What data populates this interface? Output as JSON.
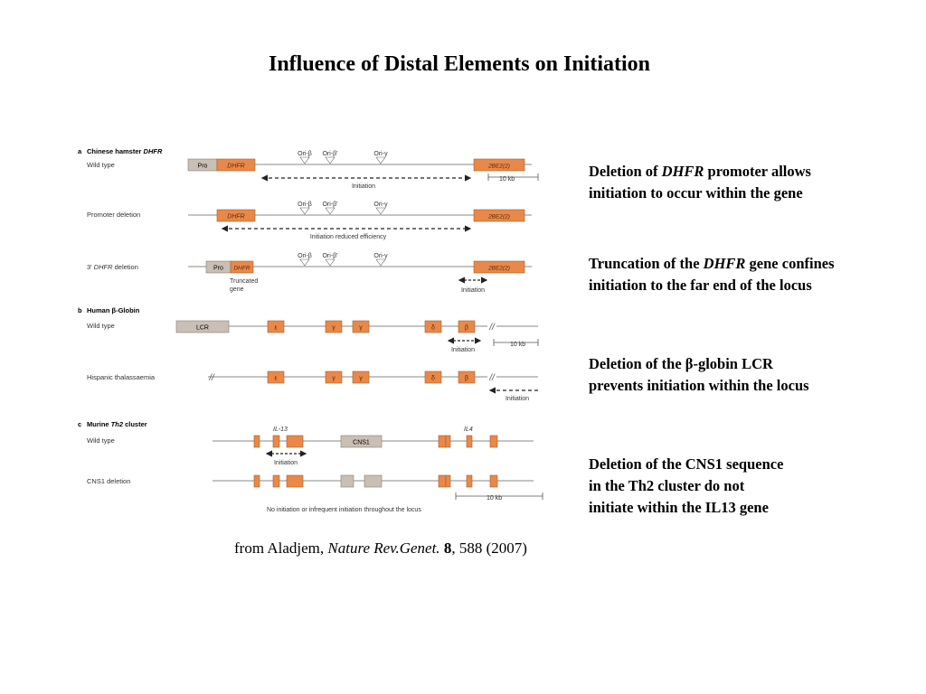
{
  "slide": {
    "title": "Influence of Distal Elements on Initiation"
  },
  "figure": {
    "panel_a": {
      "letter": "a",
      "heading_prefix": "Chinese hamster ",
      "heading_gene": "DHFR",
      "row_wild_type": "Wild type",
      "row_promoter_deletion": "Promoter deletion",
      "row_3prime_prefix": "3′ ",
      "row_3prime_gene": "DHFR",
      "row_3prime_suffix": " deletion",
      "pro": "Pro",
      "dhfr": "DHFR",
      "gene_2bez": "2BE2(2)",
      "ori_beta": "Ori-β",
      "ori_beta_prime": "Ori-β′",
      "ori_gamma": "Ori-γ",
      "initiation": "Initiation",
      "initiation_reduced": "Initiation reduced efficiency",
      "truncated_line1": "Truncated",
      "truncated_line2": "gene",
      "scale_10kb": "10 kb"
    },
    "panel_b": {
      "letter": "b",
      "heading": "Human β-Globin",
      "row_wild_type": "Wild type",
      "row_hispanic": "Hispanic thalassaemia",
      "lcr": "LCR",
      "epsilon": "ε",
      "gamma": "γ",
      "delta": "δ",
      "beta": "β",
      "break_mark": "//",
      "initiation": "Initiation",
      "scale_10kb": "10 kb"
    },
    "panel_c": {
      "letter": "c",
      "heading_prefix": "Murine ",
      "heading_gene": "Th2",
      "heading_suffix": " cluster",
      "row_wild_type": "Wild type",
      "row_cns1_deletion": "CNS1 deletion",
      "il13": "IL-13",
      "il4": "IL4",
      "cns1": "CNS1",
      "initiation": "Initiation",
      "scale_10kb": "10 kb",
      "no_initiation": "No initiation or infrequent initiation throughout the locus"
    }
  },
  "notes": [
    {
      "line1_prefix": "Deletion of ",
      "line1_italic": "DHFR",
      "line1_suffix": " promoter allows",
      "line2": "initiation to occur within the gene"
    },
    {
      "line1_prefix": "Truncation of the ",
      "line1_italic": "DHFR",
      "line1_suffix": " gene confines",
      "line2": "initiation to the far end of the locus"
    },
    {
      "line1": "Deletion of the β-globin LCR",
      "line2": "prevents initiation within the locus"
    },
    {
      "line1": "Deletion of the CNS1 sequence",
      "line2": "in the Th2 cluster do not",
      "line3": "initiate within the IL13 gene"
    }
  ],
  "citation": {
    "prefix": "from Aladjem, ",
    "journal": "Nature Rev.Genet.",
    "volume": "8",
    "rest": ", 588 (2007)"
  },
  "colors": {
    "gene_orange": "#e8894a",
    "gene_gray": "#c9bfb4",
    "line_gray": "#8a8a8a"
  }
}
